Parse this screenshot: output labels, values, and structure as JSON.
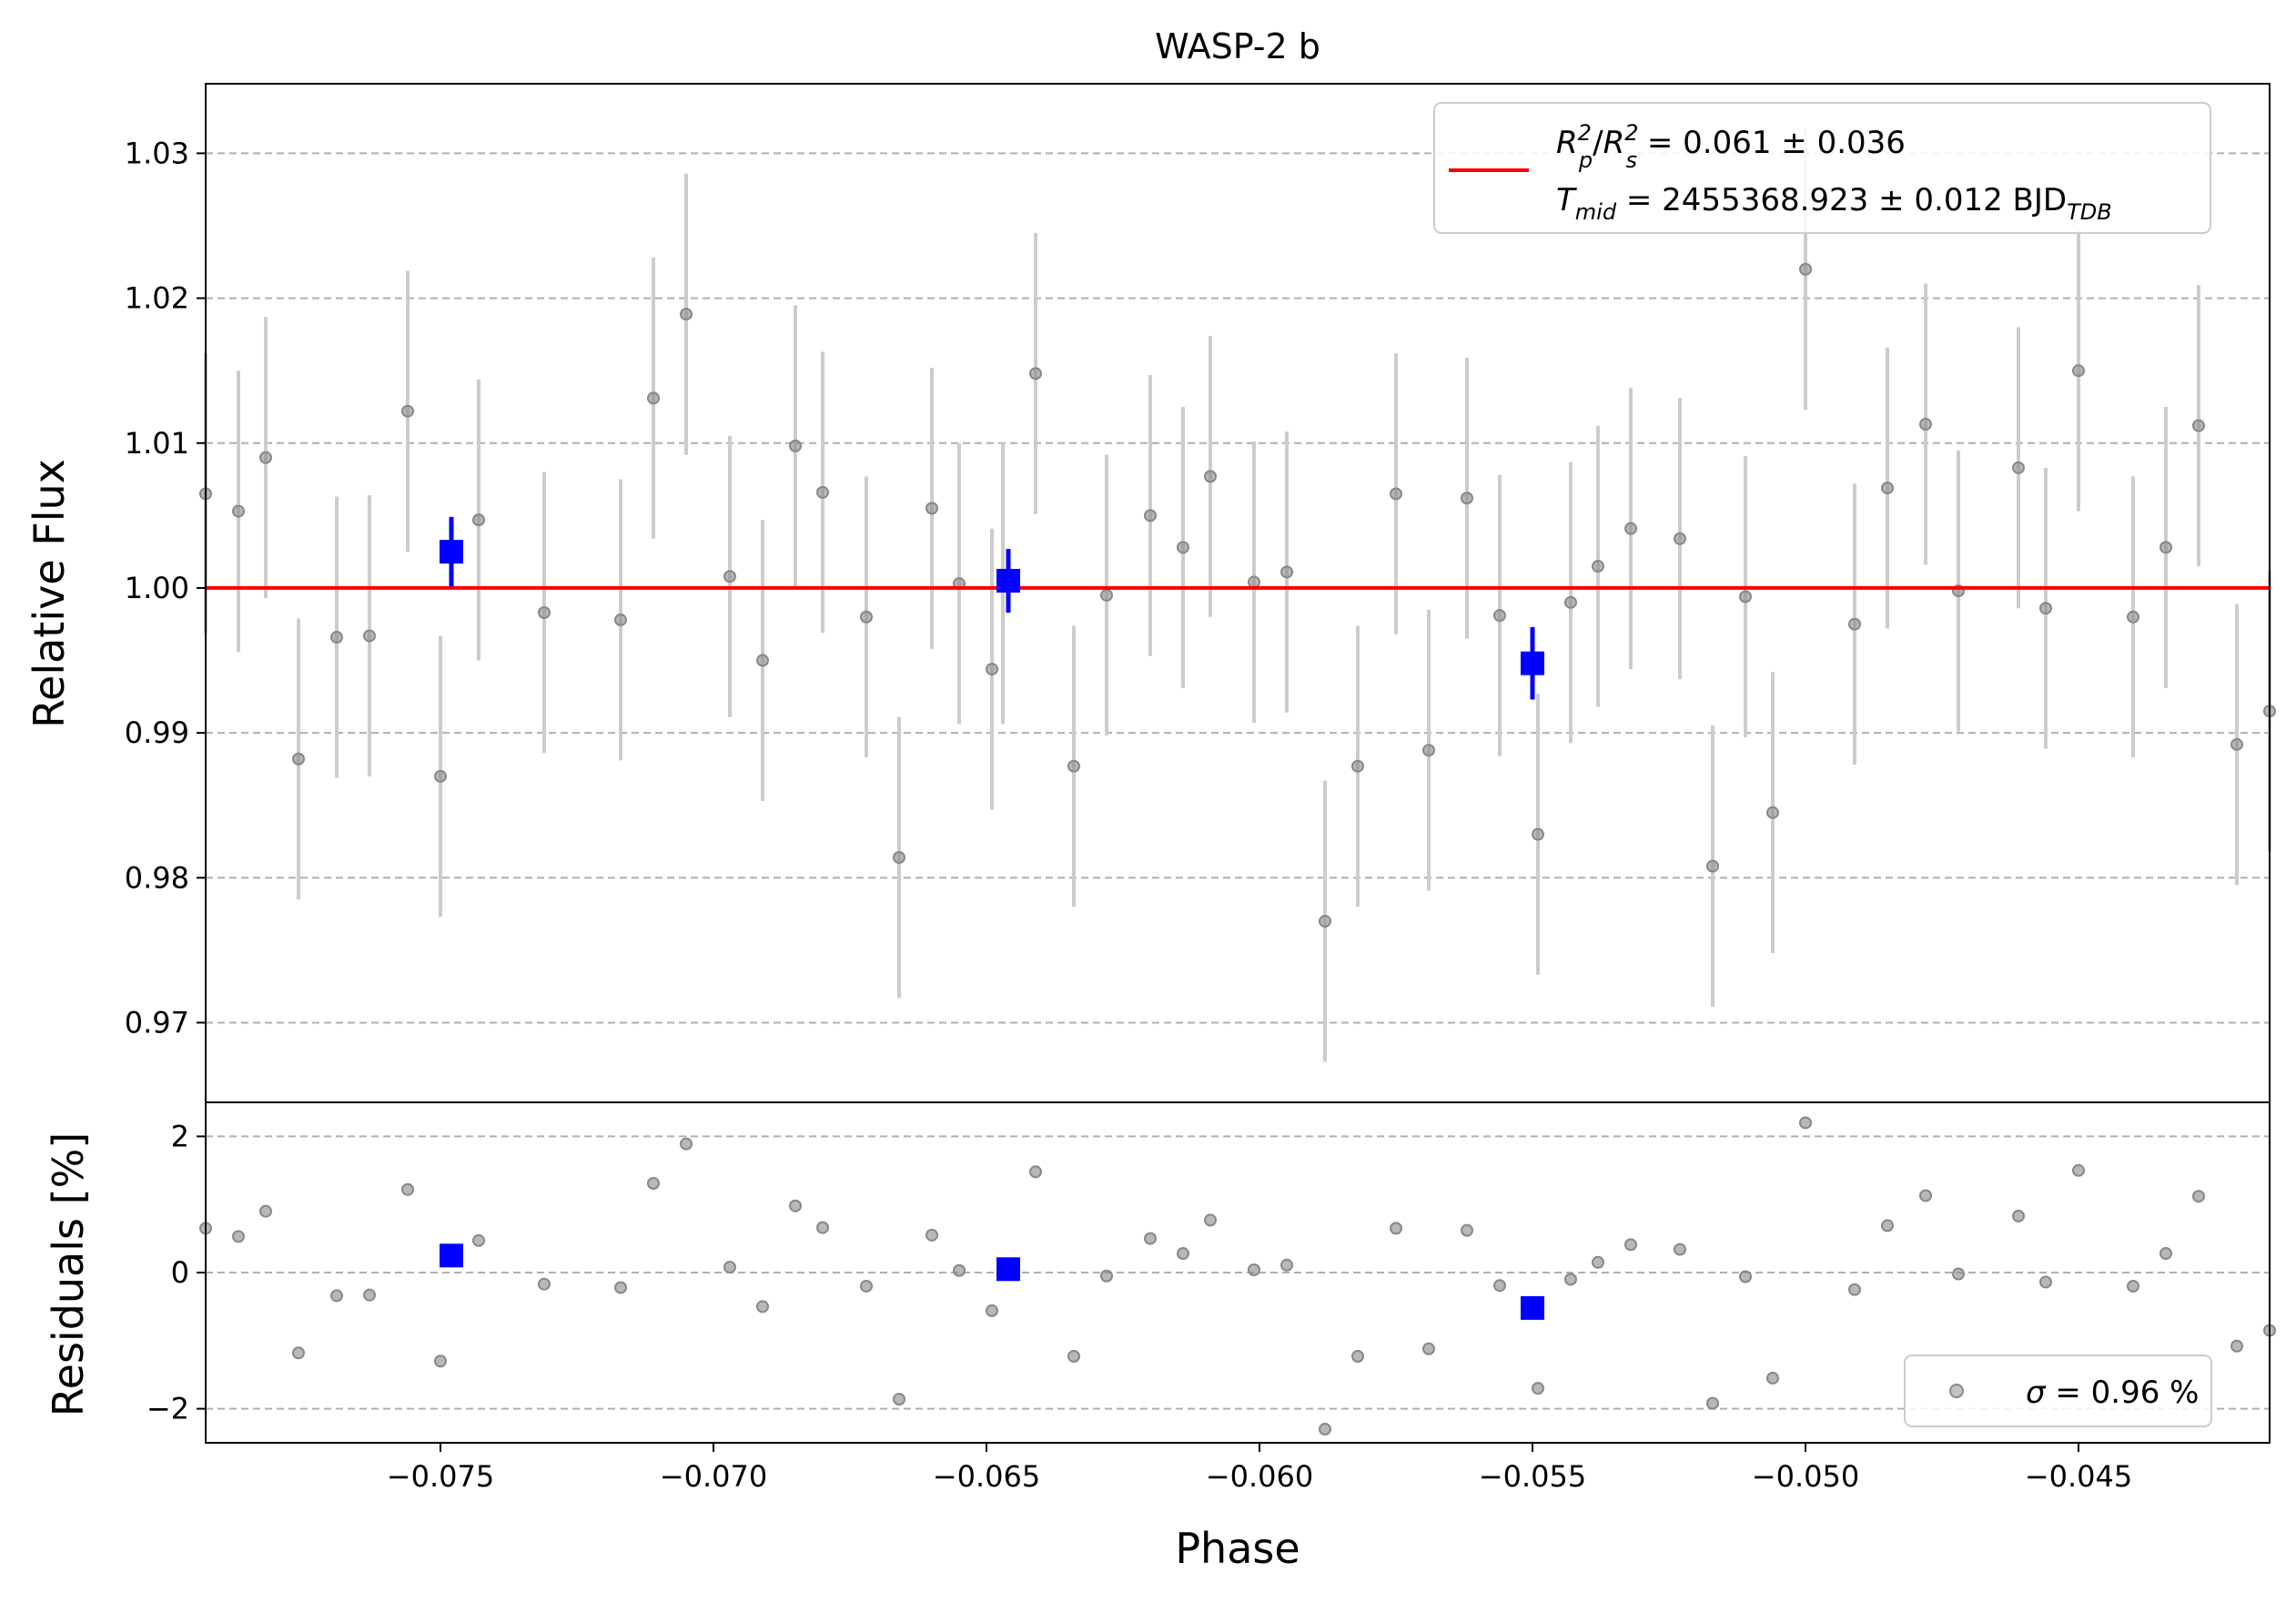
{
  "chart_data": {
    "type": "scatter",
    "title": "WASP-2 b",
    "xlabel": "Phase",
    "top_panel": {
      "ylabel": "Relative Flux",
      "xlim": [
        -0.0793,
        -0.0415
      ],
      "ylim": [
        0.9645,
        1.0348
      ],
      "yticks": [
        0.97,
        0.98,
        0.99,
        1.0,
        1.01,
        1.02,
        1.03
      ],
      "ytick_labels": [
        "0.97",
        "0.98",
        "0.99",
        "1.00",
        "1.01",
        "1.02",
        "1.03"
      ],
      "grid": "y-dashed",
      "model_line": {
        "y": 1.0,
        "color": "#ff0000"
      },
      "legend": {
        "placement": "top-right",
        "line1": {
          "base1": "R",
          "sub1": "p",
          "sup1": "2",
          "slash": "/",
          "base2": "R",
          "sub2": "s",
          "sup2": "2",
          "value": " = 0.061 ± 0.036"
        },
        "line2": {
          "base": "T",
          "sub": "mid",
          "value": " = 2455368.923 ± 0.012 BJD",
          "unit_sub": "TDB"
        }
      },
      "raw_points": {
        "color": "#888888",
        "errbar_color": "#cccccc",
        "x": [
          -0.0793,
          -0.0787,
          -0.0782,
          -0.0776,
          -0.0769,
          -0.0763,
          -0.0756,
          -0.075,
          -0.0743,
          -0.0731,
          -0.0717,
          -0.0711,
          -0.0705,
          -0.0697,
          -0.0691,
          -0.0685,
          -0.068,
          -0.0672,
          -0.0666,
          -0.066,
          -0.0655,
          -0.0649,
          -0.0647,
          -0.0641,
          -0.0634,
          -0.0628,
          -0.062,
          -0.0614,
          -0.0609,
          -0.0601,
          -0.0595,
          -0.0588,
          -0.0582,
          -0.0575,
          -0.0569,
          -0.0562,
          -0.0556,
          -0.0549,
          -0.0543,
          -0.0538,
          -0.0532,
          -0.0523,
          -0.0517,
          -0.0511,
          -0.0506,
          -0.05,
          -0.0491,
          -0.0485,
          -0.0478,
          -0.0472,
          -0.0461,
          -0.0456,
          -0.045,
          -0.044,
          -0.0434,
          -0.0428,
          -0.0421,
          -0.0415
        ],
        "y": [
          1.0065,
          1.0053,
          1.009,
          0.9882,
          0.9966,
          0.9967,
          1.0122,
          0.987,
          1.0047,
          0.9983,
          0.9978,
          1.0131,
          1.0189,
          1.0008,
          0.995,
          1.0098,
          1.0066,
          0.998,
          0.9814,
          1.0055,
          1.0003,
          0.9944,
          1.0003,
          1.0148,
          0.9877,
          0.9995,
          1.005,
          1.0028,
          1.0077,
          1.0004,
          1.0011,
          0.977,
          0.9877,
          1.0065,
          0.9888,
          1.0062,
          0.9981,
          0.983,
          0.999,
          1.0015,
          1.0041,
          1.0034,
          0.9808,
          0.9994,
          0.9845,
          1.022,
          0.9975,
          1.0069,
          1.0113,
          0.9998,
          1.0083,
          0.9986,
          1.015,
          0.998,
          1.0028,
          1.0112,
          0.9892,
          0.9915
        ],
        "yerr": 0.0097
      },
      "binned_points": {
        "color": "#0000ff",
        "x": [
          -0.0748,
          -0.0646,
          -0.055
        ],
        "y": [
          1.0025,
          1.0005,
          0.9948
        ],
        "yerr": [
          0.0024,
          0.0022,
          0.0025
        ]
      }
    },
    "bottom_panel": {
      "ylabel": "Residuals [%]",
      "ylim": [
        -2.5,
        2.5
      ],
      "yticks": [
        -2,
        0,
        2
      ],
      "ytick_labels": [
        "−2",
        "0",
        "2"
      ],
      "xticks": [
        -0.075,
        -0.07,
        -0.065,
        -0.06,
        -0.055,
        -0.05,
        -0.045
      ],
      "xtick_labels": [
        "−0.075",
        "−0.070",
        "−0.065",
        "−0.060",
        "−0.055",
        "−0.050",
        "−0.045"
      ],
      "grid": "y-dashed",
      "legend": {
        "placement": "bottom-right",
        "symbol": "σ",
        "value": " = 0.96 %"
      },
      "raw_points": {
        "color": "#888888",
        "x": [
          -0.0793,
          -0.0787,
          -0.0782,
          -0.0776,
          -0.0769,
          -0.0763,
          -0.0756,
          -0.075,
          -0.0743,
          -0.0731,
          -0.0717,
          -0.0711,
          -0.0705,
          -0.0697,
          -0.0691,
          -0.0685,
          -0.068,
          -0.0672,
          -0.0666,
          -0.066,
          -0.0655,
          -0.0649,
          -0.0647,
          -0.0641,
          -0.0634,
          -0.0628,
          -0.062,
          -0.0614,
          -0.0609,
          -0.0601,
          -0.0595,
          -0.0588,
          -0.0582,
          -0.0575,
          -0.0569,
          -0.0562,
          -0.0556,
          -0.0549,
          -0.0543,
          -0.0538,
          -0.0532,
          -0.0523,
          -0.0517,
          -0.0511,
          -0.0506,
          -0.05,
          -0.0491,
          -0.0485,
          -0.0478,
          -0.0472,
          -0.0461,
          -0.0456,
          -0.045,
          -0.044,
          -0.0434,
          -0.0428,
          -0.0421,
          -0.0415
        ],
        "y": [
          0.65,
          0.53,
          0.9,
          -1.18,
          -0.34,
          -0.33,
          1.22,
          -1.3,
          0.47,
          -0.17,
          -0.22,
          1.31,
          1.89,
          0.08,
          -0.5,
          0.98,
          0.66,
          -0.2,
          -1.86,
          0.55,
          0.03,
          -0.56,
          0.03,
          1.48,
          -1.23,
          -0.05,
          0.5,
          0.28,
          0.77,
          0.04,
          0.11,
          -2.3,
          -1.23,
          0.65,
          -1.12,
          0.62,
          -0.19,
          -1.7,
          -0.1,
          0.15,
          0.41,
          0.34,
          -1.92,
          -0.06,
          -1.55,
          2.2,
          -0.25,
          0.69,
          1.13,
          -0.02,
          0.83,
          -0.14,
          1.5,
          -0.2,
          0.28,
          1.12,
          -1.08,
          -0.85
        ]
      },
      "binned_points": {
        "color": "#0000ff",
        "x": [
          -0.0748,
          -0.0646,
          -0.055
        ],
        "y": [
          0.25,
          0.05,
          -0.52
        ]
      }
    }
  }
}
